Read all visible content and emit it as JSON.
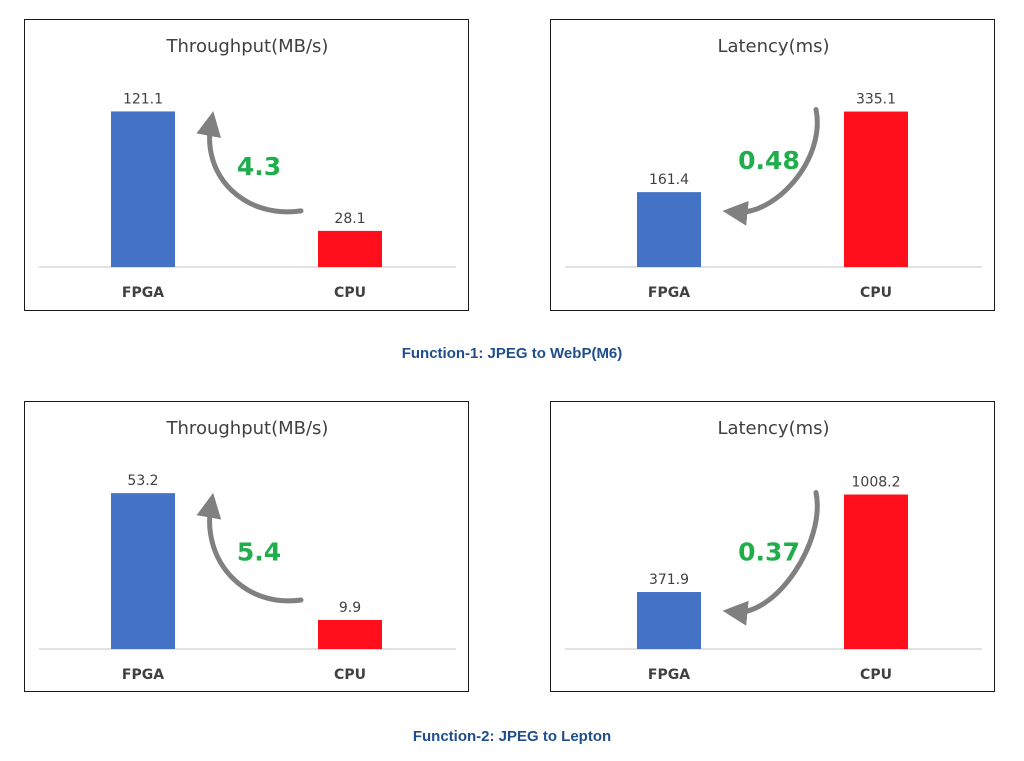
{
  "colors": {
    "fpga": "#4472c4",
    "cpu": "#ff0f1c",
    "ratio": "#1fae4b",
    "arrow": "#808080",
    "axis": "#d9d9d9"
  },
  "chart_data": [
    {
      "type": "bar",
      "title": "Throughput(MB/s)",
      "categories": [
        "FPGA",
        "CPU"
      ],
      "values": [
        121.1,
        28.1
      ],
      "value_labels": [
        "121.1",
        "28.1"
      ],
      "annotation": "4.3",
      "arrow": "cpu-to-fpga",
      "ylim": [
        0,
        130
      ],
      "grid": false,
      "legend": "none"
    },
    {
      "type": "bar",
      "title": "Latency(ms)",
      "categories": [
        "FPGA",
        "CPU"
      ],
      "values": [
        161.4,
        335.1
      ],
      "value_labels": [
        "161.4",
        "335.1"
      ],
      "annotation": "0.48",
      "arrow": "cpu-to-fpga",
      "ylim": [
        0,
        360
      ],
      "grid": false,
      "legend": "none"
    },
    {
      "type": "bar",
      "title": "Throughput(MB/s)",
      "categories": [
        "FPGA",
        "CPU"
      ],
      "values": [
        53.2,
        9.9
      ],
      "value_labels": [
        "53.2",
        "9.9"
      ],
      "annotation": "5.4",
      "arrow": "cpu-to-fpga",
      "ylim": [
        0,
        57
      ],
      "grid": false,
      "legend": "none"
    },
    {
      "type": "bar",
      "title": "Latency(ms)",
      "categories": [
        "FPGA",
        "CPU"
      ],
      "values": [
        371.9,
        1008.2
      ],
      "value_labels": [
        "371.9",
        "1008.2"
      ],
      "annotation": "0.37",
      "arrow": "cpu-to-fpga",
      "ylim": [
        0,
        1090
      ],
      "grid": false,
      "legend": "none"
    }
  ],
  "captions": [
    "Function-1: JPEG to WebP(M6)",
    "Function-2: JPEG to Lepton"
  ]
}
